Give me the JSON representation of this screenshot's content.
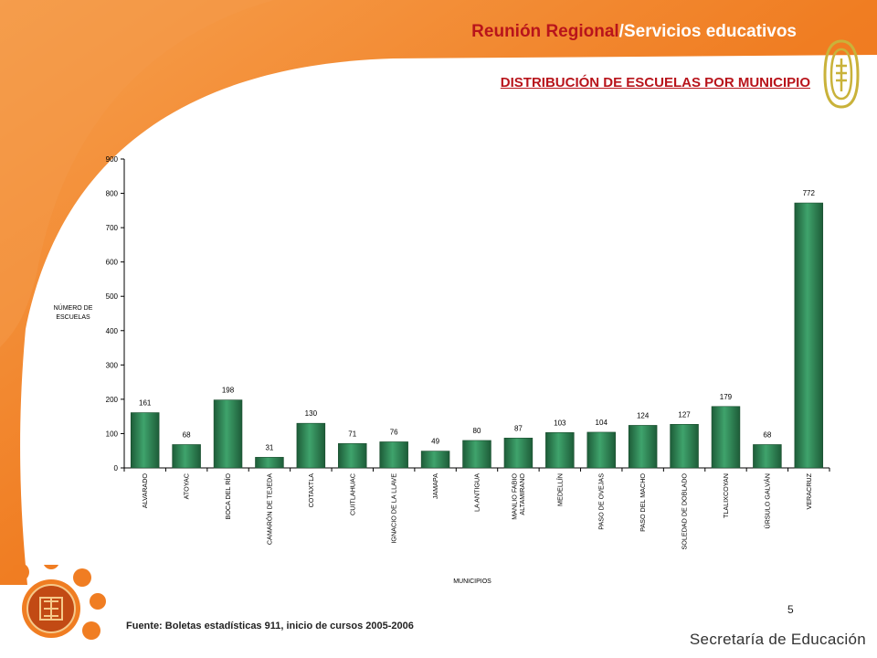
{
  "header": {
    "title_part1": "Reunión Regional",
    "title_separator": "/",
    "title_part2": "Servicios educativos",
    "subtitle": "DISTRIBUCIÓN DE ESCUELAS POR MUNICIPIO"
  },
  "footer": {
    "page_number": "5",
    "source": "Fuente: Boletas estadísticas  911, inicio de cursos 2005-2006",
    "organization": "Secretaría de Educación"
  },
  "colors": {
    "orange": "#f07d22",
    "orange_light": "#f8a860",
    "title_red": "#b8141b",
    "bar_green": "#2e8b57",
    "bar_green_dark": "#1d5c38"
  },
  "icons": {
    "logo": "sep-logo-icon",
    "seal": "veracruz-seal-icon"
  },
  "chart_data": {
    "type": "bar",
    "ylabel": "NÚMERO DE ESCUELAS",
    "xlabel": "MUNICIPIOS",
    "ylim": [
      0,
      900
    ],
    "yticks": [
      0,
      100,
      200,
      300,
      400,
      500,
      600,
      700,
      800,
      900
    ],
    "grid": false,
    "legend": "none",
    "categories": [
      [
        "ALVARADO"
      ],
      [
        "ATOYAC"
      ],
      [
        "BOCA DEL RÍO"
      ],
      [
        "CAMARÓN DE TEJEDA"
      ],
      [
        "COTAXTLA"
      ],
      [
        "CUITLAHUAC"
      ],
      [
        "IGNACIO DE LA LLAVE"
      ],
      [
        "JAMAPA"
      ],
      [
        "LA ANTIGUA"
      ],
      [
        "MANLIO FABIO",
        "ALTAMIRANO"
      ],
      [
        "MEDELLÍN"
      ],
      [
        "PASO DE OVEJAS"
      ],
      [
        "PASO DEL MACHO"
      ],
      [
        "SOLEDAD DE DOBLADO"
      ],
      [
        "TLALIXCOYAN"
      ],
      [
        "ÚRSULO GALVÁN"
      ],
      [
        "VERACRUZ"
      ]
    ],
    "values": [
      161,
      68,
      198,
      31,
      130,
      71,
      76,
      49,
      80,
      87,
      103,
      104,
      124,
      127,
      179,
      68,
      772
    ]
  }
}
